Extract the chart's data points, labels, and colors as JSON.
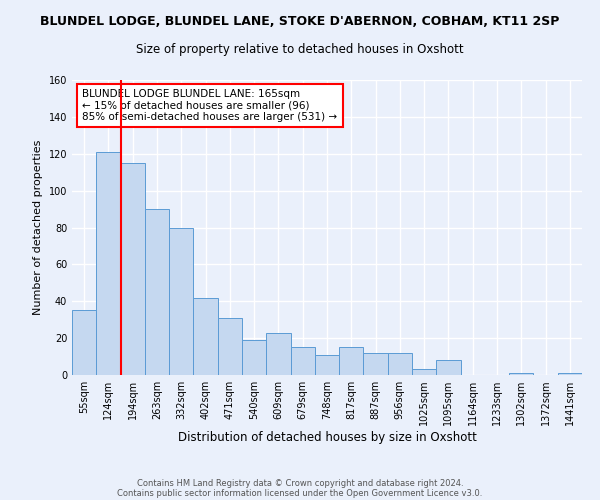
{
  "title_line1": "BLUNDEL LODGE, BLUNDEL LANE, STOKE D'ABERNON, COBHAM, KT11 2SP",
  "title_line2": "Size of property relative to detached houses in Oxshott",
  "xlabel": "Distribution of detached houses by size in Oxshott",
  "ylabel": "Number of detached properties",
  "bar_labels": [
    "55sqm",
    "124sqm",
    "194sqm",
    "263sqm",
    "332sqm",
    "402sqm",
    "471sqm",
    "540sqm",
    "609sqm",
    "679sqm",
    "748sqm",
    "817sqm",
    "887sqm",
    "956sqm",
    "1025sqm",
    "1095sqm",
    "1164sqm",
    "1233sqm",
    "1302sqm",
    "1372sqm",
    "1441sqm"
  ],
  "bar_values": [
    35,
    121,
    115,
    90,
    80,
    42,
    31,
    19,
    23,
    15,
    11,
    15,
    12,
    12,
    3,
    8,
    0,
    0,
    1,
    0,
    1
  ],
  "bar_color": "#c5d8f0",
  "bar_edge_color": "#5b9bd5",
  "redline_x": 1.5,
  "annotation_line1": "BLUNDEL LODGE BLUNDEL LANE: 165sqm",
  "annotation_line2": "← 15% of detached houses are smaller (96)",
  "annotation_line3": "85% of semi-detached houses are larger (531) →",
  "ylim": [
    0,
    160
  ],
  "yticks": [
    0,
    20,
    40,
    60,
    80,
    100,
    120,
    140,
    160
  ],
  "background_color": "#eaf0fb",
  "grid_color": "#ffffff",
  "footer_line1": "Contains HM Land Registry data © Crown copyright and database right 2024.",
  "footer_line2": "Contains public sector information licensed under the Open Government Licence v3.0."
}
